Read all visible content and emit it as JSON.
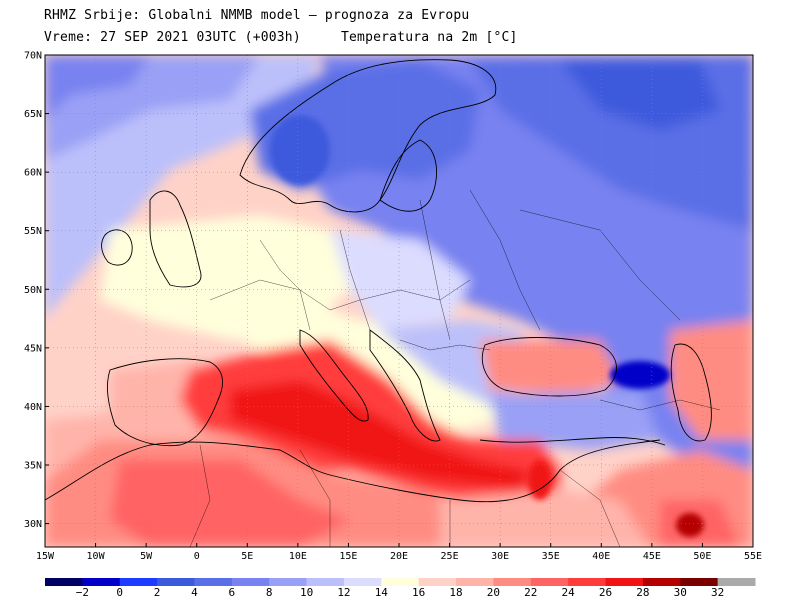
{
  "header": {
    "line1": "RHMZ Srbije: Globalni NMMB model — prognoza za Evropu",
    "line2": "Vreme: 27 SEP 2021 03UTC (+003h)     Temperatura na 2m [°C]"
  },
  "map": {
    "lon_range": [
      -15,
      55
    ],
    "lat_range": [
      28,
      70
    ],
    "lat_ticks": [
      "30N",
      "35N",
      "40N",
      "45N",
      "50N",
      "55N",
      "60N",
      "65N",
      "70N"
    ],
    "lon_ticks": [
      "15W",
      "10W",
      "5W",
      "0",
      "5E",
      "10E",
      "15E",
      "20E",
      "25E",
      "30E",
      "35E",
      "40E",
      "45E",
      "50E",
      "55E"
    ]
  },
  "colorbar": {
    "labels": [
      "−2",
      "0",
      "2",
      "4",
      "6",
      "8",
      "10",
      "12",
      "14",
      "16",
      "18",
      "20",
      "22",
      "24",
      "26",
      "28",
      "30",
      "32"
    ],
    "colors": [
      "#000066",
      "#0000c8",
      "#1e3cff",
      "#3c5adc",
      "#5a6ee6",
      "#7882f0",
      "#9aa0f5",
      "#bcc0fa",
      "#dcdcff",
      "#ffffdc",
      "#ffd2c8",
      "#ffb4aa",
      "#ff8c82",
      "#ff6464",
      "#ff3c3c",
      "#f01414",
      "#b40000",
      "#780000",
      "#aaaaaa"
    ]
  }
}
